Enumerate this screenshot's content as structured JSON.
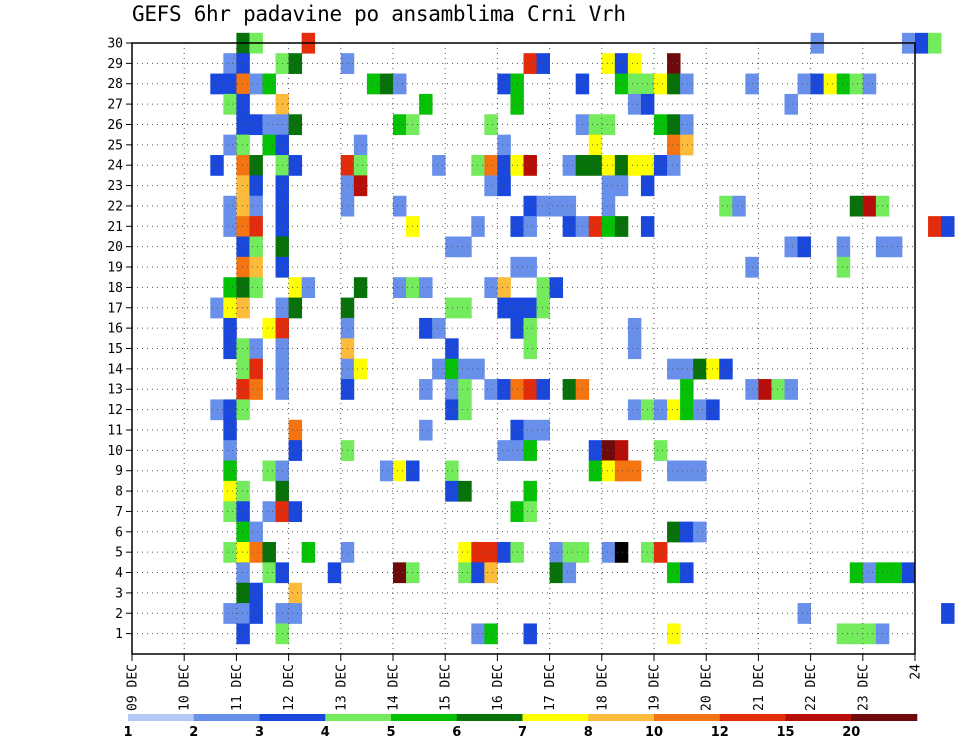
{
  "chart_data": {
    "type": "heatmap",
    "title": "GEFS 6hr padavine po ansamblima Crni Vrh",
    "xlabel": "",
    "ylabel": "",
    "x_tick_labels": [
      "09 DEC",
      "10 DEC",
      "11 DEC",
      "12 DEC",
      "13 DEC",
      "14 DEC",
      "15 DEC",
      "16 DEC",
      "17 DEC",
      "18 DEC",
      "19 DEC",
      "20 DEC",
      "21 DEC",
      "22 DEC",
      "23 DEC",
      "24"
    ],
    "x_range_days": [
      0,
      15
    ],
    "time_step_hours": 6,
    "y_tick_labels": [
      "1",
      "2",
      "3",
      "4",
      "5",
      "6",
      "7",
      "8",
      "9",
      "10",
      "11",
      "12",
      "13",
      "14",
      "15",
      "16",
      "17",
      "18",
      "19",
      "20",
      "21",
      "22",
      "23",
      "24",
      "25",
      "26",
      "27",
      "28",
      "29",
      "30"
    ],
    "y_range": [
      0,
      30
    ],
    "grid": true,
    "legend_placement": "bottom",
    "colorbar": {
      "bounds": [
        1,
        2,
        3,
        4,
        5,
        6,
        7,
        8,
        10,
        12,
        15,
        20
      ],
      "labels": [
        "1",
        "2",
        "3",
        "4",
        "5",
        "6",
        "7",
        "8",
        "10",
        "12",
        "15",
        "20"
      ],
      "colors": [
        "#b3c8f5",
        "#6890eb",
        "#1a48dd",
        "#74eb5c",
        "#06c206",
        "#08720a",
        "#ffff00",
        "#fdbb3c",
        "#f57412",
        "#e22c0c",
        "#b80e0a",
        "#6e0a0a"
      ]
    },
    "cells": [
      [
        30,
        8,
        5
      ],
      [
        30,
        9,
        3
      ],
      [
        30,
        13,
        9
      ],
      [
        30,
        52,
        1
      ],
      [
        30,
        59,
        1
      ],
      [
        30,
        60,
        2
      ],
      [
        30,
        61,
        3
      ],
      [
        29,
        7,
        1
      ],
      [
        29,
        8,
        2
      ],
      [
        29,
        11,
        3
      ],
      [
        29,
        12,
        5
      ],
      [
        29,
        16,
        1
      ],
      [
        29,
        30,
        9
      ],
      [
        29,
        31,
        2
      ],
      [
        29,
        36,
        6
      ],
      [
        29,
        37,
        2
      ],
      [
        29,
        38,
        6
      ],
      [
        29,
        41,
        11
      ],
      [
        28,
        6,
        2
      ],
      [
        28,
        7,
        2
      ],
      [
        28,
        8,
        8
      ],
      [
        28,
        9,
        1
      ],
      [
        28,
        10,
        4
      ],
      [
        28,
        18,
        4
      ],
      [
        28,
        19,
        5
      ],
      [
        28,
        20,
        1
      ],
      [
        28,
        28,
        2
      ],
      [
        28,
        29,
        4
      ],
      [
        28,
        34,
        2
      ],
      [
        28,
        37,
        4
      ],
      [
        28,
        38,
        3
      ],
      [
        28,
        39,
        3
      ],
      [
        28,
        40,
        6
      ],
      [
        28,
        41,
        5
      ],
      [
        28,
        42,
        1
      ],
      [
        28,
        47,
        1
      ],
      [
        28,
        51,
        1
      ],
      [
        28,
        52,
        2
      ],
      [
        28,
        53,
        6
      ],
      [
        28,
        54,
        4
      ],
      [
        28,
        55,
        3
      ],
      [
        28,
        56,
        1
      ],
      [
        27,
        7,
        3
      ],
      [
        27,
        8,
        2
      ],
      [
        27,
        11,
        7
      ],
      [
        27,
        22,
        4
      ],
      [
        27,
        29,
        4
      ],
      [
        27,
        38,
        1
      ],
      [
        27,
        39,
        2
      ],
      [
        27,
        50,
        1
      ],
      [
        26,
        8,
        2
      ],
      [
        26,
        9,
        2
      ],
      [
        26,
        10,
        1
      ],
      [
        26,
        11,
        1
      ],
      [
        26,
        12,
        5
      ],
      [
        26,
        20,
        4
      ],
      [
        26,
        21,
        3
      ],
      [
        26,
        27,
        3
      ],
      [
        26,
        34,
        1
      ],
      [
        26,
        35,
        3
      ],
      [
        26,
        36,
        3
      ],
      [
        26,
        40,
        4
      ],
      [
        26,
        41,
        5
      ],
      [
        26,
        42,
        1
      ],
      [
        25,
        7,
        1
      ],
      [
        25,
        8,
        3
      ],
      [
        25,
        10,
        4
      ],
      [
        25,
        11,
        2
      ],
      [
        25,
        17,
        1
      ],
      [
        25,
        28,
        1
      ],
      [
        25,
        35,
        6
      ],
      [
        25,
        41,
        8
      ],
      [
        25,
        42,
        7
      ],
      [
        24,
        6,
        2
      ],
      [
        24,
        8,
        8
      ],
      [
        24,
        9,
        5
      ],
      [
        24,
        11,
        3
      ],
      [
        24,
        12,
        2
      ],
      [
        24,
        16,
        9
      ],
      [
        24,
        17,
        3
      ],
      [
        24,
        23,
        1
      ],
      [
        24,
        26,
        3
      ],
      [
        24,
        27,
        8
      ],
      [
        24,
        28,
        2
      ],
      [
        24,
        29,
        6
      ],
      [
        24,
        30,
        10
      ],
      [
        24,
        33,
        1
      ],
      [
        24,
        34,
        5
      ],
      [
        24,
        35,
        5
      ],
      [
        24,
        36,
        6
      ],
      [
        24,
        37,
        5
      ],
      [
        24,
        38,
        6
      ],
      [
        24,
        39,
        6
      ],
      [
        24,
        40,
        2
      ],
      [
        24,
        41,
        1
      ],
      [
        23,
        8,
        7
      ],
      [
        23,
        9,
        2
      ],
      [
        23,
        11,
        2
      ],
      [
        23,
        16,
        1
      ],
      [
        23,
        17,
        10
      ],
      [
        23,
        27,
        1
      ],
      [
        23,
        28,
        2
      ],
      [
        23,
        36,
        1
      ],
      [
        23,
        37,
        1
      ],
      [
        23,
        39,
        2
      ],
      [
        22,
        7,
        1
      ],
      [
        22,
        8,
        7
      ],
      [
        22,
        9,
        1
      ],
      [
        22,
        11,
        2
      ],
      [
        22,
        16,
        1
      ],
      [
        22,
        20,
        1
      ],
      [
        22,
        30,
        2
      ],
      [
        22,
        31,
        1
      ],
      [
        22,
        32,
        1
      ],
      [
        22,
        33,
        1
      ],
      [
        22,
        36,
        1
      ],
      [
        22,
        45,
        3
      ],
      [
        22,
        46,
        1
      ],
      [
        22,
        55,
        5
      ],
      [
        22,
        56,
        10
      ],
      [
        22,
        57,
        3
      ],
      [
        21,
        7,
        1
      ],
      [
        21,
        8,
        8
      ],
      [
        21,
        9,
        9
      ],
      [
        21,
        11,
        2
      ],
      [
        21,
        21,
        6
      ],
      [
        21,
        26,
        1
      ],
      [
        21,
        29,
        2
      ],
      [
        21,
        30,
        1
      ],
      [
        21,
        33,
        2
      ],
      [
        21,
        34,
        1
      ],
      [
        21,
        35,
        9
      ],
      [
        21,
        36,
        4
      ],
      [
        21,
        37,
        5
      ],
      [
        21,
        39,
        2
      ],
      [
        21,
        61,
        9
      ],
      [
        21,
        62,
        2
      ],
      [
        20,
        8,
        2
      ],
      [
        20,
        9,
        3
      ],
      [
        20,
        11,
        5
      ],
      [
        20,
        24,
        1
      ],
      [
        20,
        25,
        1
      ],
      [
        20,
        50,
        1
      ],
      [
        20,
        51,
        2
      ],
      [
        20,
        54,
        1
      ],
      [
        20,
        57,
        1
      ],
      [
        20,
        58,
        1
      ],
      [
        19,
        8,
        8
      ],
      [
        19,
        9,
        7
      ],
      [
        19,
        11,
        2
      ],
      [
        19,
        29,
        1
      ],
      [
        19,
        30,
        1
      ],
      [
        19,
        47,
        1
      ],
      [
        19,
        54,
        3
      ],
      [
        18,
        7,
        4
      ],
      [
        18,
        8,
        5
      ],
      [
        18,
        9,
        3
      ],
      [
        18,
        12,
        6
      ],
      [
        18,
        13,
        1
      ],
      [
        18,
        17,
        5
      ],
      [
        18,
        20,
        1
      ],
      [
        18,
        21,
        3
      ],
      [
        18,
        22,
        1
      ],
      [
        18,
        27,
        1
      ],
      [
        18,
        28,
        7
      ],
      [
        18,
        31,
        3
      ],
      [
        18,
        32,
        2
      ],
      [
        17,
        6,
        1
      ],
      [
        17,
        7,
        6
      ],
      [
        17,
        8,
        7
      ],
      [
        17,
        11,
        1
      ],
      [
        17,
        12,
        5
      ],
      [
        17,
        16,
        5
      ],
      [
        17,
        24,
        3
      ],
      [
        17,
        25,
        3
      ],
      [
        17,
        28,
        2
      ],
      [
        17,
        29,
        2
      ],
      [
        17,
        30,
        2
      ],
      [
        17,
        31,
        3
      ],
      [
        16,
        7,
        2
      ],
      [
        16,
        10,
        6
      ],
      [
        16,
        11,
        9
      ],
      [
        16,
        16,
        1
      ],
      [
        16,
        22,
        2
      ],
      [
        16,
        23,
        1
      ],
      [
        16,
        29,
        2
      ],
      [
        16,
        30,
        3
      ],
      [
        16,
        38,
        1
      ],
      [
        15,
        7,
        2
      ],
      [
        15,
        8,
        3
      ],
      [
        15,
        9,
        1
      ],
      [
        15,
        11,
        1
      ],
      [
        15,
        16,
        7
      ],
      [
        15,
        24,
        2
      ],
      [
        15,
        30,
        3
      ],
      [
        15,
        38,
        1
      ],
      [
        14,
        8,
        3
      ],
      [
        14,
        9,
        9
      ],
      [
        14,
        11,
        1
      ],
      [
        14,
        16,
        1
      ],
      [
        14,
        17,
        6
      ],
      [
        14,
        23,
        1
      ],
      [
        14,
        24,
        4
      ],
      [
        14,
        25,
        1
      ],
      [
        14,
        26,
        1
      ],
      [
        14,
        41,
        1
      ],
      [
        14,
        42,
        1
      ],
      [
        14,
        43,
        5
      ],
      [
        14,
        44,
        6
      ],
      [
        14,
        45,
        2
      ],
      [
        13,
        8,
        9
      ],
      [
        13,
        9,
        8
      ],
      [
        13,
        11,
        1
      ],
      [
        13,
        16,
        2
      ],
      [
        13,
        22,
        1
      ],
      [
        13,
        24,
        1
      ],
      [
        13,
        25,
        3
      ],
      [
        13,
        27,
        1
      ],
      [
        13,
        28,
        2
      ],
      [
        13,
        29,
        8
      ],
      [
        13,
        30,
        9
      ],
      [
        13,
        31,
        2
      ],
      [
        13,
        33,
        5
      ],
      [
        13,
        34,
        8
      ],
      [
        13,
        42,
        4
      ],
      [
        13,
        47,
        1
      ],
      [
        13,
        48,
        10
      ],
      [
        13,
        49,
        3
      ],
      [
        13,
        50,
        1
      ],
      [
        12,
        6,
        1
      ],
      [
        12,
        7,
        2
      ],
      [
        12,
        8,
        3
      ],
      [
        12,
        24,
        2
      ],
      [
        12,
        25,
        3
      ],
      [
        12,
        38,
        1
      ],
      [
        12,
        39,
        3
      ],
      [
        12,
        40,
        1
      ],
      [
        12,
        41,
        6
      ],
      [
        12,
        42,
        4
      ],
      [
        12,
        43,
        1
      ],
      [
        12,
        44,
        2
      ],
      [
        11,
        7,
        2
      ],
      [
        11,
        12,
        8
      ],
      [
        11,
        22,
        1
      ],
      [
        11,
        29,
        2
      ],
      [
        11,
        30,
        1
      ],
      [
        11,
        31,
        1
      ],
      [
        10,
        7,
        1
      ],
      [
        10,
        12,
        2
      ],
      [
        10,
        16,
        3
      ],
      [
        10,
        28,
        1
      ],
      [
        10,
        29,
        1
      ],
      [
        10,
        30,
        4
      ],
      [
        10,
        35,
        2
      ],
      [
        10,
        36,
        11
      ],
      [
        10,
        37,
        10
      ],
      [
        10,
        40,
        3
      ],
      [
        9,
        7,
        4
      ],
      [
        9,
        10,
        3
      ],
      [
        9,
        11,
        1
      ],
      [
        9,
        19,
        1
      ],
      [
        9,
        20,
        6
      ],
      [
        9,
        21,
        2
      ],
      [
        9,
        24,
        3
      ],
      [
        9,
        35,
        4
      ],
      [
        9,
        36,
        6
      ],
      [
        9,
        37,
        8
      ],
      [
        9,
        38,
        8
      ],
      [
        9,
        41,
        1
      ],
      [
        9,
        42,
        1
      ],
      [
        9,
        43,
        1
      ],
      [
        8,
        7,
        6
      ],
      [
        8,
        8,
        3
      ],
      [
        8,
        11,
        5
      ],
      [
        8,
        24,
        2
      ],
      [
        8,
        25,
        5
      ],
      [
        8,
        30,
        4
      ],
      [
        7,
        7,
        3
      ],
      [
        7,
        8,
        2
      ],
      [
        7,
        10,
        1
      ],
      [
        7,
        11,
        9
      ],
      [
        7,
        12,
        2
      ],
      [
        7,
        29,
        4
      ],
      [
        7,
        30,
        3
      ],
      [
        6,
        8,
        4
      ],
      [
        6,
        9,
        1
      ],
      [
        6,
        41,
        5
      ],
      [
        6,
        42,
        2
      ],
      [
        6,
        43,
        1
      ],
      [
        5,
        7,
        3
      ],
      [
        5,
        8,
        6
      ],
      [
        5,
        9,
        8
      ],
      [
        5,
        10,
        5
      ],
      [
        5,
        13,
        4
      ],
      [
        5,
        16,
        1
      ],
      [
        5,
        25,
        6
      ],
      [
        5,
        26,
        9
      ],
      [
        5,
        27,
        9
      ],
      [
        5,
        28,
        2
      ],
      [
        5,
        29,
        3
      ],
      [
        5,
        32,
        1
      ],
      [
        5,
        33,
        3
      ],
      [
        5,
        34,
        3
      ],
      [
        5,
        36,
        1
      ],
      [
        5,
        37,
        12
      ],
      [
        5,
        39,
        3
      ],
      [
        5,
        40,
        9
      ],
      [
        4,
        8,
        1
      ],
      [
        4,
        10,
        3
      ],
      [
        4,
        11,
        2
      ],
      [
        4,
        15,
        2
      ],
      [
        4,
        20,
        11
      ],
      [
        4,
        21,
        3
      ],
      [
        4,
        25,
        3
      ],
      [
        4,
        26,
        2
      ],
      [
        4,
        27,
        7
      ],
      [
        4,
        32,
        5
      ],
      [
        4,
        33,
        1
      ],
      [
        4,
        41,
        4
      ],
      [
        4,
        42,
        2
      ],
      [
        4,
        55,
        4
      ],
      [
        4,
        56,
        1
      ],
      [
        4,
        57,
        4
      ],
      [
        4,
        58,
        4
      ],
      [
        4,
        59,
        2
      ],
      [
        3,
        8,
        5
      ],
      [
        3,
        9,
        2
      ],
      [
        3,
        12,
        7
      ],
      [
        2,
        7,
        1
      ],
      [
        2,
        8,
        1
      ],
      [
        2,
        9,
        2
      ],
      [
        2,
        11,
        1
      ],
      [
        2,
        12,
        1
      ],
      [
        2,
        51,
        1
      ],
      [
        2,
        62,
        2
      ],
      [
        1,
        8,
        2
      ],
      [
        1,
        11,
        3
      ],
      [
        1,
        26,
        1
      ],
      [
        1,
        27,
        4
      ],
      [
        1,
        30,
        2
      ],
      [
        1,
        41,
        6
      ],
      [
        1,
        54,
        3
      ],
      [
        1,
        55,
        3
      ],
      [
        1,
        56,
        3
      ],
      [
        1,
        57,
        1
      ]
    ]
  }
}
